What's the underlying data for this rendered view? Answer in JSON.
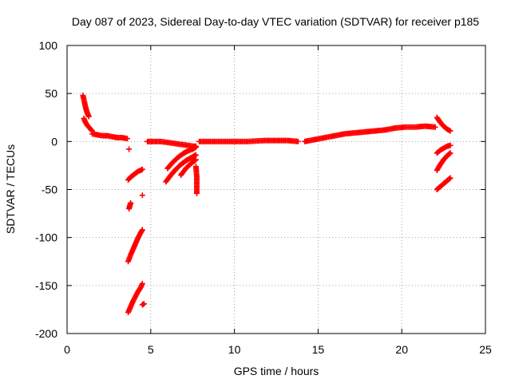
{
  "chart_data": {
    "type": "scatter",
    "title": "Day 087 of 2023, Sidereal Day-to-day VTEC variation (SDTVAR) for receiver p185",
    "xlabel": "GPS time / hours",
    "ylabel": "SDTVAR / TECUs",
    "xlim": [
      0,
      25
    ],
    "ylim": [
      -200,
      100
    ],
    "xticks": [
      0,
      5,
      10,
      15,
      20,
      25
    ],
    "yticks": [
      -200,
      -150,
      -100,
      -50,
      0,
      50,
      100
    ],
    "xtick_labels": [
      "0",
      "5",
      "10",
      "15",
      "20",
      "25"
    ],
    "ytick_labels": [
      "-200",
      "-150",
      "-100",
      "-50",
      "0",
      "50",
      "100"
    ],
    "grid": true,
    "marker": "plus",
    "color": "#ff0000",
    "segments": [
      {
        "x": [
          0.95,
          1.0,
          1.05,
          1.1,
          1.15,
          1.2,
          1.25,
          1.3
        ],
        "y": [
          48,
          44,
          40,
          36,
          33,
          30,
          28,
          26
        ]
      },
      {
        "x": [
          1.0,
          1.1,
          1.2,
          1.3,
          1.4,
          1.5
        ],
        "y": [
          24,
          20,
          17,
          15,
          13,
          11
        ]
      },
      {
        "x": [
          1.5,
          1.8,
          2.1,
          2.4,
          2.7,
          3.0,
          3.3,
          3.6
        ],
        "y": [
          8,
          7,
          6,
          6,
          5,
          4,
          4,
          3
        ]
      },
      {
        "x": [
          3.7
        ],
        "y": [
          -8
        ]
      },
      {
        "x": [
          3.65,
          3.8,
          3.95,
          4.1,
          4.25,
          4.4,
          4.5
        ],
        "y": [
          -40,
          -37,
          -35,
          -33,
          -31,
          -30,
          -29
        ]
      },
      {
        "x": [
          3.7,
          3.75,
          3.8
        ],
        "y": [
          -70,
          -67,
          -64
        ]
      },
      {
        "x": [
          3.65,
          3.8,
          3.95,
          4.1,
          4.25,
          4.4,
          4.5
        ],
        "y": [
          -125,
          -118,
          -112,
          -106,
          -100,
          -95,
          -92
        ]
      },
      {
        "x": [
          3.65,
          3.8,
          3.95,
          4.1,
          4.25,
          4.4,
          4.5
        ],
        "y": [
          -178,
          -172,
          -166,
          -161,
          -156,
          -152,
          -148
        ]
      },
      {
        "x": [
          4.5
        ],
        "y": [
          -56
        ]
      },
      {
        "x": [
          4.5,
          4.6
        ],
        "y": [
          -170,
          -169
        ]
      },
      {
        "x": [
          4.8,
          5.2,
          5.6,
          6.0,
          6.4,
          6.8,
          7.2,
          7.6,
          7.7
        ],
        "y": [
          0,
          0,
          0,
          -1,
          -2,
          -3,
          -4,
          -5,
          -5
        ]
      },
      {
        "x": [
          6.0,
          6.3,
          6.6,
          6.9,
          7.2,
          7.5,
          7.7
        ],
        "y": [
          -28,
          -22,
          -17,
          -13,
          -10,
          -8,
          -6
        ]
      },
      {
        "x": [
          5.9,
          6.2,
          6.5,
          6.8,
          7.1,
          7.4,
          7.7
        ],
        "y": [
          -42,
          -35,
          -29,
          -24,
          -20,
          -17,
          -14
        ]
      },
      {
        "x": [
          6.8,
          7.1,
          7.4,
          7.7
        ],
        "y": [
          -35,
          -28,
          -23,
          -19
        ]
      },
      {
        "x": [
          7.7,
          7.75,
          7.75
        ],
        "y": [
          -26,
          -37,
          -54
        ]
      },
      {
        "x": [
          7.9,
          8.8,
          9.8,
          10.8,
          11.8,
          12.5,
          13.2,
          13.8
        ],
        "y": [
          0,
          0,
          0,
          0,
          1,
          1,
          1,
          0
        ]
      },
      {
        "x": [
          14.2,
          14.8,
          15.4,
          16.0,
          16.6,
          17.2,
          17.8,
          18.4,
          19.0,
          19.6,
          20.2,
          20.8,
          21.4,
          22.0
        ],
        "y": [
          0,
          2,
          4,
          6,
          8,
          9,
          10,
          11,
          12,
          14,
          15,
          15,
          16,
          15
        ]
      },
      {
        "x": [
          22.1,
          22.3,
          22.5,
          22.7,
          22.9
        ],
        "y": [
          25,
          20,
          16,
          13,
          11
        ]
      },
      {
        "x": [
          22.1,
          22.3,
          22.5,
          22.7,
          22.9
        ],
        "y": [
          -12,
          -9,
          -7,
          -5,
          -4
        ]
      },
      {
        "x": [
          22.1,
          22.3,
          22.5,
          22.7,
          22.9
        ],
        "y": [
          -30,
          -24,
          -19,
          -15,
          -12
        ]
      },
      {
        "x": [
          22.1,
          22.3,
          22.5,
          22.7,
          22.9
        ],
        "y": [
          -50,
          -47,
          -44,
          -41,
          -38
        ]
      }
    ]
  }
}
